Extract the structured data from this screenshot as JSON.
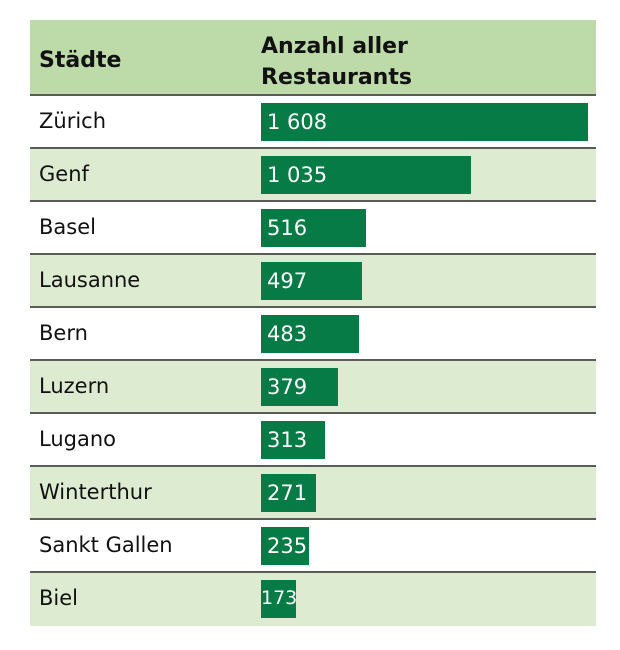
{
  "header": {
    "city_label": "Städte",
    "count_label_line1": "Anzahl aller",
    "count_label_line2": "Restaurants"
  },
  "colors": {
    "header_bg": "#bcdba8",
    "alt_row_bg": "#ddebd1",
    "bar": "#077b45",
    "divider": "#5b5b5b"
  },
  "rows": [
    {
      "city": "Zürich",
      "value": 1608,
      "label": "1 608"
    },
    {
      "city": "Genf",
      "value": 1035,
      "label": "1 035"
    },
    {
      "city": "Basel",
      "value": 516,
      "label": "516"
    },
    {
      "city": "Lausanne",
      "value": 497,
      "label": "497"
    },
    {
      "city": "Bern",
      "value": 483,
      "label": "483"
    },
    {
      "city": "Luzern",
      "value": 379,
      "label": "379"
    },
    {
      "city": "Lugano",
      "value": 313,
      "label": "313"
    },
    {
      "city": "Winterthur",
      "value": 271,
      "label": "271"
    },
    {
      "city": "Sankt Gallen",
      "value": 235,
      "label": "235"
    },
    {
      "city": "Biel",
      "value": 173,
      "label": "173"
    }
  ],
  "chart_data": {
    "type": "bar",
    "orientation": "horizontal",
    "title": "",
    "xlabel": "Anzahl aller Restaurants",
    "ylabel": "Städte",
    "categories": [
      "Zürich",
      "Genf",
      "Basel",
      "Lausanne",
      "Bern",
      "Luzern",
      "Lugano",
      "Winterthur",
      "Sankt Gallen",
      "Biel"
    ],
    "values": [
      1608,
      1035,
      516,
      497,
      483,
      379,
      313,
      271,
      235,
      173
    ],
    "grid": false,
    "legend": null
  }
}
